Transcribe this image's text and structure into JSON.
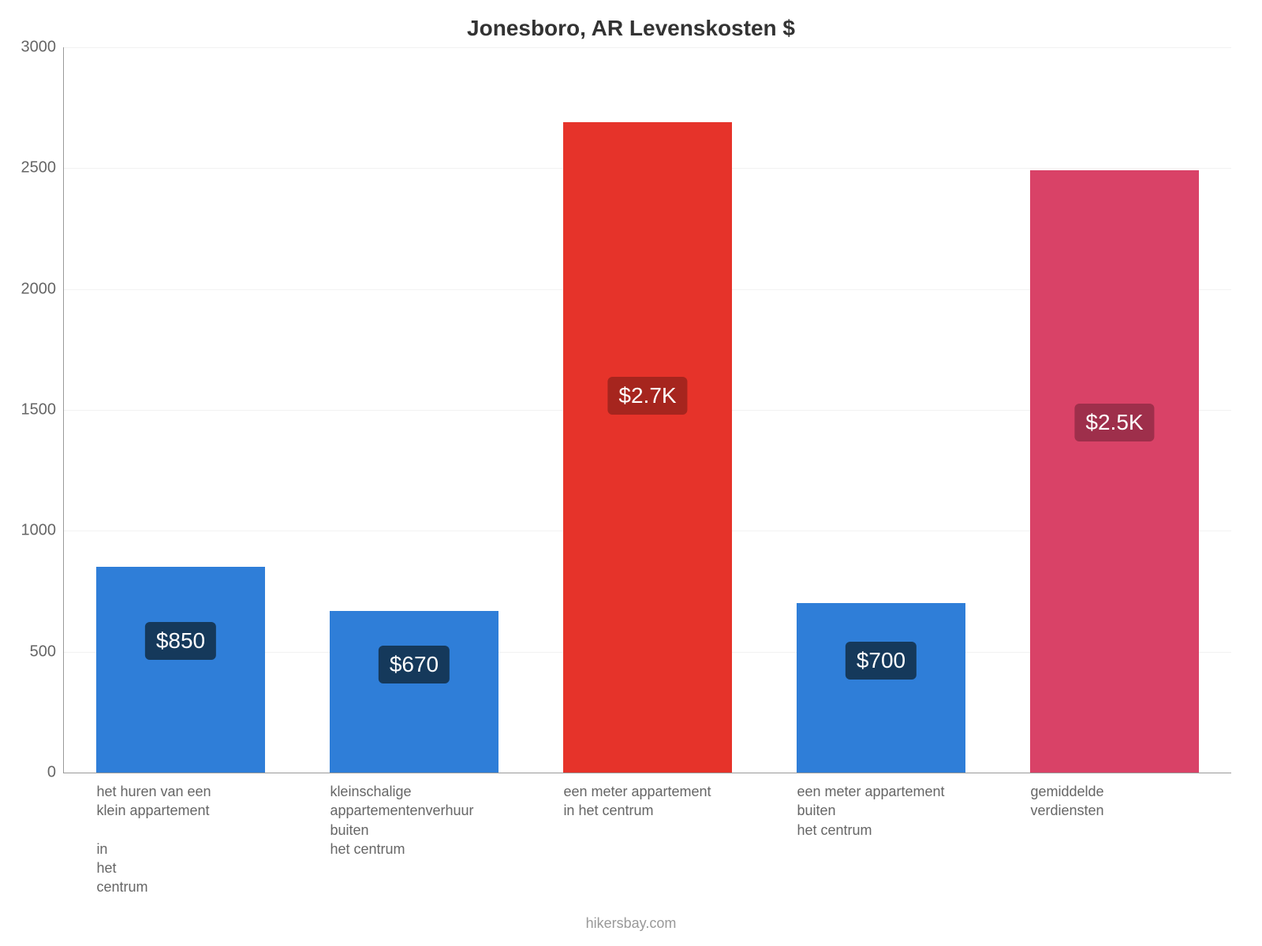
{
  "chart": {
    "type": "bar",
    "title": "Jonesboro, AR Levenskosten $",
    "title_fontsize": 28,
    "title_color": "#333333",
    "background_color": "#ffffff",
    "axis_color": "#999999",
    "grid_color": "#cccccc",
    "ylim": [
      0,
      3000
    ],
    "ytick_step": 500,
    "yticks": [
      "0",
      "500",
      "1000",
      "1500",
      "2000",
      "2500",
      "3000"
    ],
    "ytick_fontsize": 20,
    "ytick_color": "#666666",
    "bar_width": 0.72,
    "value_badge_fontsize": 28,
    "value_badge_radius": 6,
    "x_label_fontsize": 18,
    "x_label_color": "#666666",
    "footer": "hikersbay.com",
    "footer_color": "#999999",
    "footer_fontsize": 18,
    "bars": [
      {
        "label": "het huren van een\nklein appartement\n\nin\nhet\ncentrum",
        "value": 850,
        "display": "$850",
        "color": "#2f7ed8",
        "badge_color": "#15395b"
      },
      {
        "label": "kleinschalige\nappartementenverhuur\nbuiten\nhet centrum",
        "value": 670,
        "display": "$670",
        "color": "#2f7ed8",
        "badge_color": "#15395b"
      },
      {
        "label": "een meter appartement\nin het centrum",
        "value": 2690,
        "display": "$2.7K",
        "color": "#e6332a",
        "badge_color": "#a6251e"
      },
      {
        "label": "een meter appartement\nbuiten\nhet centrum",
        "value": 700,
        "display": "$700",
        "color": "#2f7ed8",
        "badge_color": "#15395b"
      },
      {
        "label": "gemiddelde\nverdiensten",
        "value": 2490,
        "display": "$2.5K",
        "color": "#d94267",
        "badge_color": "#9e2f4b"
      }
    ]
  }
}
